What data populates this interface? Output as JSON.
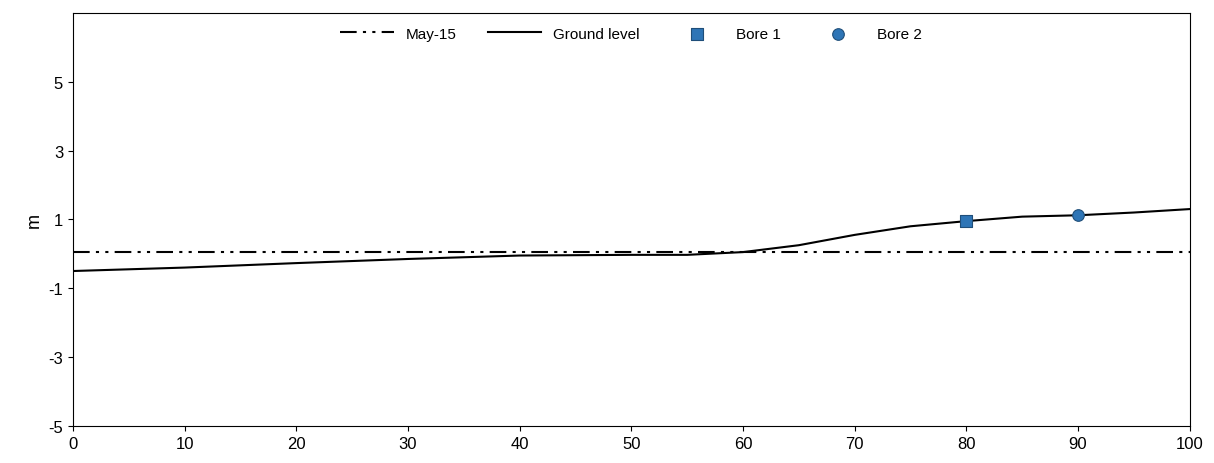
{
  "chart_data": {
    "type": "line",
    "y_label": "m",
    "xlim": [
      0,
      100
    ],
    "xticks": [
      0,
      10,
      20,
      30,
      40,
      50,
      60,
      70,
      80,
      90,
      100
    ],
    "ylim": [
      -5,
      7
    ],
    "yticks": [
      -5,
      -3,
      -1,
      1,
      3,
      5
    ],
    "grid": false,
    "legend": "upper center",
    "series": [
      {
        "name": "May-15",
        "type": "line",
        "color": "#000000",
        "line_style": "dashdotdot",
        "x": [
          0,
          100
        ],
        "values": [
          0.05,
          0.05
        ]
      },
      {
        "name": "Ground level",
        "type": "line",
        "color": "#000000",
        "line_style": "solid",
        "x": [
          0,
          10,
          20,
          30,
          40,
          50,
          55,
          60,
          65,
          70,
          75,
          80,
          85,
          90,
          95,
          100
        ],
        "values": [
          -0.5,
          -0.4,
          -0.27,
          -0.15,
          -0.05,
          -0.03,
          -0.03,
          0.05,
          0.25,
          0.55,
          0.8,
          0.95,
          1.08,
          1.12,
          1.2,
          1.3
        ]
      },
      {
        "name": "Bore 1",
        "type": "scatter",
        "color": "#2e75b6",
        "marker": "square",
        "x": [
          80
        ],
        "values": [
          0.95
        ]
      },
      {
        "name": "Bore 2",
        "type": "scatter",
        "color": "#2e75b6",
        "marker": "circle",
        "x": [
          90
        ],
        "values": [
          1.12
        ]
      }
    ]
  }
}
